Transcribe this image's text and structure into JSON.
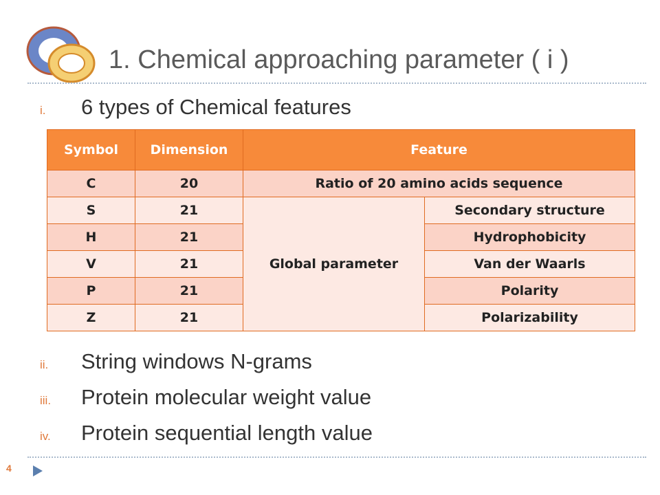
{
  "slide": {
    "title": "1. Chemical approaching parameter ( i )",
    "page_number": "4",
    "colors": {
      "accent": "#e07a3c",
      "header_fill": "#f78a3a",
      "row_dark": "#fbd3c7",
      "row_light": "#fde9e3",
      "divider": "#a9b9cc"
    }
  },
  "bullets": [
    {
      "num": "i.",
      "text": "6 types of Chemical features"
    },
    {
      "num": "ii.",
      "text": "String windows N-grams"
    },
    {
      "num": "iii.",
      "text": "Protein molecular weight value"
    },
    {
      "num": "iv.",
      "text": "Protein sequential length value"
    }
  ],
  "table": {
    "headers": [
      "Symbol",
      "Dimension",
      "Feature"
    ],
    "row_c": {
      "symbol": "C",
      "dimension": "20",
      "feature": "Ratio of 20 amino acids sequence"
    },
    "global_label": "Global parameter",
    "rows": [
      {
        "symbol": "S",
        "dimension": "21",
        "feature": "Secondary structure"
      },
      {
        "symbol": "H",
        "dimension": "21",
        "feature": "Hydrophobicity"
      },
      {
        "symbol": "V",
        "dimension": "21",
        "feature": "Van der Waarls"
      },
      {
        "symbol": "P",
        "dimension": "21",
        "feature": "Polarity"
      },
      {
        "symbol": "Z",
        "dimension": "21",
        "feature": "Polarizability"
      }
    ]
  }
}
